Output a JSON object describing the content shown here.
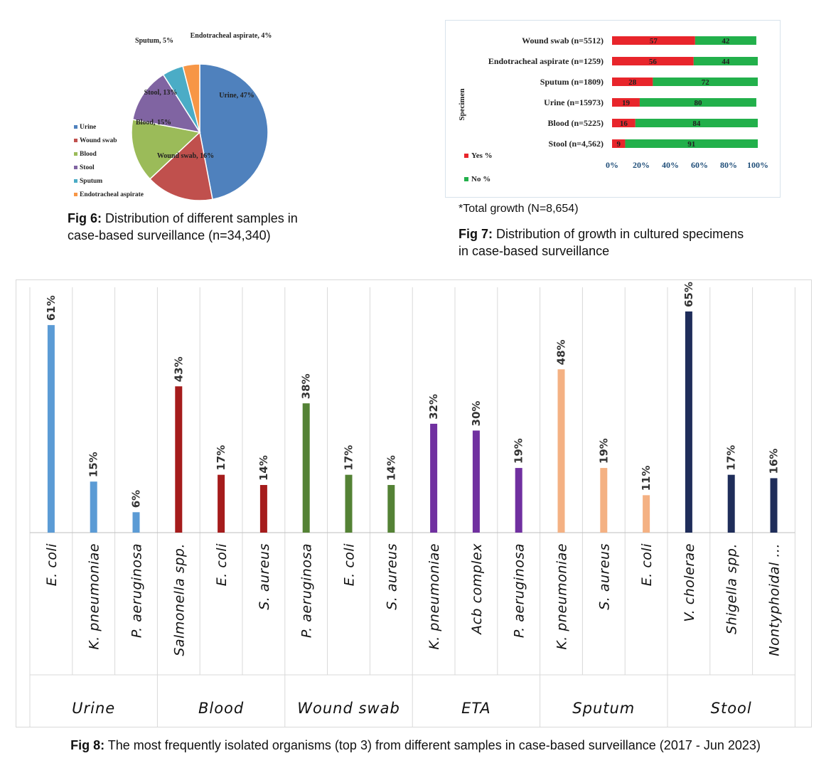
{
  "fig6": {
    "caption_label": "Fig 6:",
    "caption_line1": "Distribution of different samples in",
    "caption_line2": "case-based surveillance (n=34,340)"
  },
  "fig7": {
    "note": "*Total growth (N=8,654)",
    "caption_label": "Fig 7:",
    "caption_line1": "Distribution of growth in cultured specimens",
    "caption_line2": "in case-based surveillance"
  },
  "fig8": {
    "caption_label": "Fig 8:",
    "caption_text": "The most frequently isolated organisms (top 3) from different samples in case-based surveillance (2017 - Jun 2023)"
  },
  "chart_data": [
    {
      "type": "pie",
      "slices": [
        {
          "label": "Urine",
          "value": 47,
          "color": "#4f81bd",
          "data_label": "Urine, 47%"
        },
        {
          "label": "Wound swab",
          "value": 16,
          "color": "#c0504d",
          "data_label": "Wound swab, 16%"
        },
        {
          "label": "Blood",
          "value": 15,
          "color": "#9bbb59",
          "data_label": "Blood, 15%"
        },
        {
          "label": "Stool",
          "value": 13,
          "color": "#8064a2",
          "data_label": "Stool, 13%"
        },
        {
          "label": "Sputum",
          "value": 5,
          "color": "#4bacc6",
          "data_label": "Sputum, 5%"
        },
        {
          "label": "Endotracheal aspirate",
          "value": 4,
          "color": "#f79646",
          "data_label": "Endotracheal aspirate, 4%"
        }
      ],
      "legend_position": "bottom-left"
    },
    {
      "type": "bar",
      "orientation": "horizontal-stacked-100",
      "ylabel": "Specimen",
      "categories": [
        "Wound swab (n=5512)",
        "Endotracheal aspirate (n=1259)",
        "Sputum (n=1809)",
        "Urine (n=15973)",
        "Blood (n=5225)",
        "Stool (n=4,562)"
      ],
      "series": [
        {
          "name": "Yes %",
          "color": "#e8252b",
          "values": [
            57,
            56,
            28,
            19,
            16,
            9
          ]
        },
        {
          "name": "No %",
          "color": "#22b04b",
          "values": [
            42,
            44,
            72,
            80,
            84,
            91
          ]
        }
      ],
      "xticks": [
        "0%",
        "20%",
        "40%",
        "60%",
        "80%",
        "100%"
      ],
      "xlim": [
        0,
        100
      ],
      "legend_position": "bottom-left"
    },
    {
      "type": "bar",
      "ylim": [
        0,
        70
      ],
      "grid": true,
      "groups": [
        {
          "name": "Urine",
          "color": "#5b9bd5",
          "organisms": [
            "E. coli",
            "K. pneumoniae",
            "P. aeruginosa"
          ],
          "values": [
            61,
            15,
            6
          ],
          "labels": [
            "61%",
            "15%",
            "6%"
          ]
        },
        {
          "name": "Blood",
          "color": "#a51c1c",
          "organisms": [
            "Salmonella spp.",
            "E. coli",
            "S. aureus"
          ],
          "values": [
            43,
            17,
            14
          ],
          "labels": [
            "43%",
            "17%",
            "14%"
          ]
        },
        {
          "name": "Wound swab",
          "color": "#548235",
          "organisms": [
            "P. aeruginosa",
            "E. coli",
            "S. aureus"
          ],
          "values": [
            38,
            17,
            14
          ],
          "labels": [
            "38%",
            "17%",
            "14%"
          ]
        },
        {
          "name": "ETA",
          "color": "#7030a0",
          "organisms": [
            "K. pneumoniae",
            "Acb complex",
            "P. aeruginosa"
          ],
          "values": [
            32,
            30,
            19
          ],
          "labels": [
            "32%",
            "30%",
            "19%"
          ]
        },
        {
          "name": "Sputum",
          "color": "#f4b183",
          "organisms": [
            "K. pneumoniae",
            "S. aureus",
            "E. coli"
          ],
          "values": [
            48,
            19,
            11
          ],
          "labels": [
            "48%",
            "19%",
            "11%"
          ]
        },
        {
          "name": "Stool",
          "color": "#1f2d5a",
          "organisms": [
            "V. cholerae",
            "Shigella spp.",
            "Nontyphoidal ..."
          ],
          "values": [
            65,
            17,
            16
          ],
          "labels": [
            "65%",
            "17%",
            "16%"
          ]
        }
      ]
    }
  ]
}
